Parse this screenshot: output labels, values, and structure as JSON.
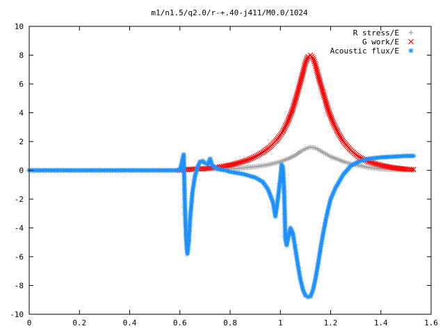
{
  "chart_data": {
    "type": "scatter",
    "title": "m1/n1.5/q2.0/r-+.40-j411/M0.0/1024",
    "xlabel": "",
    "ylabel": "",
    "xlim": [
      0,
      1.6
    ],
    "ylim": [
      -10,
      10
    ],
    "x_ticks": [
      "0",
      "0.2",
      "0.4",
      "0.6",
      "0.8",
      "1",
      "1.2",
      "1.4",
      "1.6"
    ],
    "y_ticks": [
      "10",
      "8",
      "6",
      "4",
      "2",
      "0",
      "-2",
      "-4",
      "-6",
      "-8",
      "-10"
    ],
    "grid": false,
    "legend_position": "top-right",
    "series": [
      {
        "name": "R stress/E",
        "marker": "+",
        "color": "#a0a0a0",
        "points": [
          [
            0.62,
            0.1
          ],
          [
            0.65,
            0.12
          ],
          [
            0.68,
            0.13
          ],
          [
            0.7,
            0.12
          ],
          [
            0.72,
            0.1
          ],
          [
            0.75,
            0.08
          ],
          [
            0.78,
            0.08
          ],
          [
            0.8,
            0.1
          ],
          [
            0.85,
            0.16
          ],
          [
            0.9,
            0.25
          ],
          [
            0.95,
            0.38
          ],
          [
            1.0,
            0.6
          ],
          [
            1.03,
            0.8
          ],
          [
            1.06,
            1.05
          ],
          [
            1.08,
            1.3
          ],
          [
            1.1,
            1.5
          ],
          [
            1.12,
            1.62
          ],
          [
            1.14,
            1.55
          ],
          [
            1.16,
            1.35
          ],
          [
            1.18,
            1.15
          ],
          [
            1.2,
            0.95
          ],
          [
            1.23,
            0.75
          ],
          [
            1.26,
            0.55
          ],
          [
            1.3,
            0.38
          ],
          [
            1.35,
            0.2
          ],
          [
            1.4,
            0.1
          ],
          [
            1.45,
            0.04
          ],
          [
            1.5,
            0.02
          ],
          [
            1.53,
            0.0
          ]
        ]
      },
      {
        "name": "G work/E",
        "marker": "x",
        "color": "#ff0000",
        "points": [
          [
            0.6,
            0.0
          ],
          [
            0.63,
            0.05
          ],
          [
            0.66,
            0.08
          ],
          [
            0.69,
            0.1
          ],
          [
            0.72,
            0.15
          ],
          [
            0.75,
            0.22
          ],
          [
            0.78,
            0.3
          ],
          [
            0.81,
            0.4
          ],
          [
            0.84,
            0.55
          ],
          [
            0.87,
            0.72
          ],
          [
            0.9,
            0.95
          ],
          [
            0.93,
            1.25
          ],
          [
            0.96,
            1.65
          ],
          [
            0.99,
            2.2
          ],
          [
            1.01,
            2.7
          ],
          [
            1.03,
            3.4
          ],
          [
            1.05,
            4.3
          ],
          [
            1.07,
            5.5
          ],
          [
            1.09,
            6.8
          ],
          [
            1.1,
            7.5
          ],
          [
            1.11,
            7.9
          ],
          [
            1.12,
            8.0
          ],
          [
            1.13,
            7.8
          ],
          [
            1.14,
            7.3
          ],
          [
            1.15,
            6.6
          ],
          [
            1.17,
            5.4
          ],
          [
            1.19,
            4.2
          ],
          [
            1.21,
            3.3
          ],
          [
            1.23,
            2.6
          ],
          [
            1.25,
            2.0
          ],
          [
            1.28,
            1.4
          ],
          [
            1.31,
            0.95
          ],
          [
            1.35,
            0.6
          ],
          [
            1.4,
            0.35
          ],
          [
            1.45,
            0.18
          ],
          [
            1.5,
            0.08
          ],
          [
            1.53,
            0.05
          ]
        ]
      },
      {
        "name": "Acoustic flux/E",
        "marker": "*",
        "color": "#1e90ff",
        "points": [
          [
            0.0,
            0.0
          ],
          [
            0.1,
            0.0
          ],
          [
            0.2,
            0.0
          ],
          [
            0.3,
            0.0
          ],
          [
            0.4,
            0.0
          ],
          [
            0.5,
            0.0
          ],
          [
            0.55,
            0.0
          ],
          [
            0.6,
            0.0
          ],
          [
            0.615,
            1.1
          ],
          [
            0.618,
            -1.2
          ],
          [
            0.62,
            -2.5
          ],
          [
            0.622,
            -3.6
          ],
          [
            0.625,
            -4.8
          ],
          [
            0.628,
            -5.5
          ],
          [
            0.63,
            -5.8
          ],
          [
            0.635,
            -5.0
          ],
          [
            0.64,
            -3.5
          ],
          [
            0.65,
            -1.5
          ],
          [
            0.66,
            -0.4
          ],
          [
            0.67,
            0.2
          ],
          [
            0.68,
            0.6
          ],
          [
            0.69,
            0.65
          ],
          [
            0.7,
            0.5
          ],
          [
            0.71,
            0.4
          ],
          [
            0.72,
            0.8
          ],
          [
            0.73,
            0.3
          ],
          [
            0.75,
            0.1
          ],
          [
            0.78,
            0.0
          ],
          [
            0.8,
            -0.1
          ],
          [
            0.85,
            -0.25
          ],
          [
            0.9,
            -0.5
          ],
          [
            0.93,
            -0.8
          ],
          [
            0.95,
            -1.3
          ],
          [
            0.97,
            -2.2
          ],
          [
            0.98,
            -3.2
          ],
          [
            0.99,
            -2.0
          ],
          [
            1.0,
            -0.5
          ],
          [
            1.005,
            0.4
          ],
          [
            1.01,
            0.2
          ],
          [
            1.015,
            -1.5
          ],
          [
            1.02,
            -4.8
          ],
          [
            1.025,
            -5.2
          ],
          [
            1.03,
            -4.8
          ],
          [
            1.04,
            -4.0
          ],
          [
            1.05,
            -4.4
          ],
          [
            1.06,
            -5.5
          ],
          [
            1.07,
            -6.6
          ],
          [
            1.08,
            -7.6
          ],
          [
            1.09,
            -8.3
          ],
          [
            1.1,
            -8.7
          ],
          [
            1.11,
            -8.8
          ],
          [
            1.12,
            -8.75
          ],
          [
            1.13,
            -8.3
          ],
          [
            1.14,
            -7.5
          ],
          [
            1.15,
            -6.5
          ],
          [
            1.16,
            -5.4
          ],
          [
            1.17,
            -4.4
          ],
          [
            1.18,
            -3.5
          ],
          [
            1.19,
            -2.7
          ],
          [
            1.2,
            -2.0
          ],
          [
            1.22,
            -1.2
          ],
          [
            1.25,
            -0.3
          ],
          [
            1.28,
            0.3
          ],
          [
            1.31,
            0.6
          ],
          [
            1.35,
            0.8
          ],
          [
            1.4,
            0.9
          ],
          [
            1.45,
            0.95
          ],
          [
            1.5,
            1.0
          ],
          [
            1.53,
            1.0
          ]
        ]
      }
    ]
  }
}
